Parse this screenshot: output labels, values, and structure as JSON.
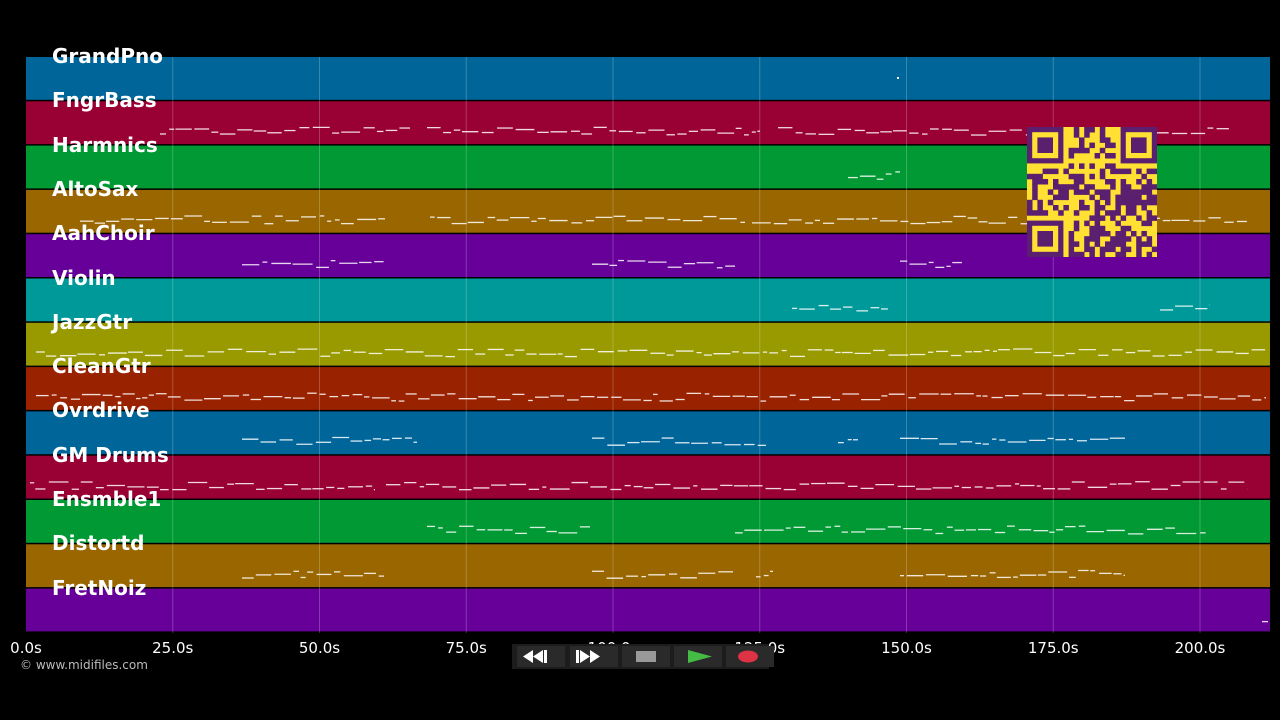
{
  "timeline": {
    "tick_labels": [
      "0.0s",
      "25.0s",
      "50.0s",
      "75.0s",
      "100.0s",
      "125.0s",
      "150.0s",
      "175.0s",
      "200.0s"
    ],
    "max_seconds": 212
  },
  "tracks": [
    {
      "name": "GrandPno",
      "color": "#006699"
    },
    {
      "name": "FngrBass",
      "color": "#990033"
    },
    {
      "name": "Harmnics",
      "color": "#009933"
    },
    {
      "name": "AltoSax",
      "color": "#996600"
    },
    {
      "name": "AahChoir",
      "color": "#660099"
    },
    {
      "name": "Violin",
      "color": "#009999"
    },
    {
      "name": "JazzGtr",
      "color": "#999900"
    },
    {
      "name": "CleanGtr",
      "color": "#992200"
    },
    {
      "name": "Ovrdrive",
      "color": "#006699"
    },
    {
      "name": "GM Drums",
      "color": "#990033"
    },
    {
      "name": "Ensmble1",
      "color": "#009933"
    },
    {
      "name": "Distortd",
      "color": "#996600"
    },
    {
      "name": "FretNoiz",
      "color": "#660099"
    }
  ],
  "footer": {
    "copyright": "© www.midifiles.com"
  },
  "transport": {
    "rewind_icon": "rewind-icon",
    "fast_forward_icon": "fast-forward-icon",
    "stop_icon": "stop-icon",
    "play_icon": "play-icon",
    "record_icon": "record-icon",
    "play_color": "#44bb44",
    "record_color": "#dd3344"
  },
  "qr_code": {
    "icon": "qr-code-icon",
    "color": "#ffe033"
  }
}
